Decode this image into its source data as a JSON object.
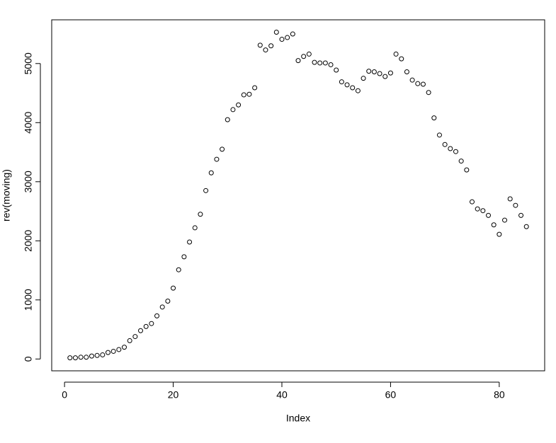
{
  "chart_data": {
    "type": "scatter",
    "xlabel": "Index",
    "ylabel": "rev(moving)",
    "x": [
      1,
      2,
      3,
      4,
      5,
      6,
      7,
      8,
      9,
      10,
      11,
      12,
      13,
      14,
      15,
      16,
      17,
      18,
      19,
      20,
      21,
      22,
      23,
      24,
      25,
      26,
      27,
      28,
      29,
      30,
      31,
      32,
      33,
      34,
      35,
      36,
      37,
      38,
      39,
      40,
      41,
      42,
      43,
      44,
      45,
      46,
      47,
      48,
      49,
      50,
      51,
      52,
      53,
      54,
      55,
      56,
      57,
      58,
      59,
      60,
      61,
      62,
      63,
      64,
      65,
      66,
      67,
      68,
      69,
      70,
      71,
      72,
      73,
      74,
      75,
      76,
      77,
      78,
      79,
      80,
      81,
      82,
      83,
      84,
      85
    ],
    "series": [
      {
        "name": "rev(moving)",
        "color": "#000000",
        "values": [
          20,
          20,
          30,
          30,
          50,
          60,
          70,
          110,
          130,
          160,
          200,
          310,
          380,
          480,
          550,
          600,
          730,
          880,
          980,
          1200,
          1510,
          1730,
          1980,
          2220,
          2450,
          2850,
          3150,
          3380,
          3550,
          4050,
          4220,
          4300,
          4470,
          4480,
          4590,
          5310,
          5230,
          5300,
          5530,
          5410,
          5440,
          5500,
          5050,
          5120,
          5160,
          5020,
          5010,
          5010,
          4980,
          4890,
          4690,
          4640,
          4590,
          4540,
          4750,
          4870,
          4860,
          4830,
          4780,
          4840,
          5160,
          5080,
          4860,
          4720,
          4660,
          4650,
          4510,
          4080,
          3790,
          3630,
          3560,
          3510,
          3350,
          3200,
          2660,
          2540,
          2510,
          2430,
          2270,
          2110,
          2350,
          2710,
          2600,
          2430,
          2240
        ]
      }
    ],
    "xlim": [
      -2.36,
      88.36
    ],
    "ylim": [
      -200,
      5740
    ],
    "xticks": [
      0,
      20,
      40,
      60,
      80
    ],
    "yticks": [
      0,
      1000,
      2000,
      3000,
      4000,
      5000
    ]
  }
}
